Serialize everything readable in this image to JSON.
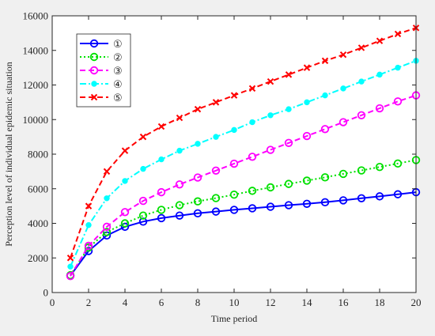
{
  "chart_data": {
    "type": "line",
    "title": "",
    "xlabel": "Time period",
    "ylabel": "Perception level of individual epidemic situation",
    "xlim": [
      0,
      20
    ],
    "ylim": [
      0,
      16000
    ],
    "xticks": [
      0,
      2,
      4,
      6,
      8,
      10,
      12,
      14,
      16,
      18,
      20
    ],
    "yticks": [
      0,
      2000,
      4000,
      6000,
      8000,
      10000,
      12000,
      14000,
      16000
    ],
    "grid": false,
    "legend_position": "top-left",
    "x": [
      1,
      2,
      3,
      4,
      5,
      6,
      7,
      8,
      9,
      10,
      11,
      12,
      13,
      14,
      15,
      16,
      17,
      18,
      19,
      20
    ],
    "series": [
      {
        "name": "①",
        "color": "#0000ff",
        "line_style": "solid",
        "marker": "circle-open",
        "values": [
          980,
          2400,
          3300,
          3800,
          4100,
          4300,
          4450,
          4580,
          4680,
          4780,
          4870,
          4960,
          5050,
          5130,
          5220,
          5330,
          5450,
          5560,
          5680,
          5800
        ]
      },
      {
        "name": "②",
        "color": "#00e000",
        "line_style": "dotted",
        "marker": "circle-open",
        "values": [
          1000,
          2600,
          3500,
          4000,
          4450,
          4780,
          5050,
          5270,
          5460,
          5660,
          5880,
          6080,
          6280,
          6470,
          6660,
          6860,
          7060,
          7260,
          7460,
          7660
        ]
      },
      {
        "name": "③",
        "color": "#ff00ff",
        "line_style": "dashed",
        "marker": "circle-open",
        "values": [
          950,
          2700,
          3800,
          4650,
          5300,
          5800,
          6250,
          6650,
          7050,
          7450,
          7850,
          8250,
          8650,
          9050,
          9450,
          9850,
          10250,
          10650,
          11050,
          11400
        ]
      },
      {
        "name": "④",
        "color": "#00ffff",
        "line_style": "dash-dot",
        "marker": "dot",
        "values": [
          1500,
          3900,
          5450,
          6450,
          7150,
          7700,
          8200,
          8600,
          9000,
          9400,
          9850,
          10250,
          10600,
          11000,
          11400,
          11800,
          12200,
          12600,
          13000,
          13400
        ]
      },
      {
        "name": "⑤",
        "color": "#ff0000",
        "line_style": "dashed",
        "marker": "x",
        "values": [
          2000,
          5000,
          7000,
          8200,
          9000,
          9600,
          10100,
          10600,
          11000,
          11400,
          11800,
          12200,
          12600,
          13000,
          13400,
          13750,
          14150,
          14550,
          14950,
          15300
        ]
      }
    ]
  }
}
